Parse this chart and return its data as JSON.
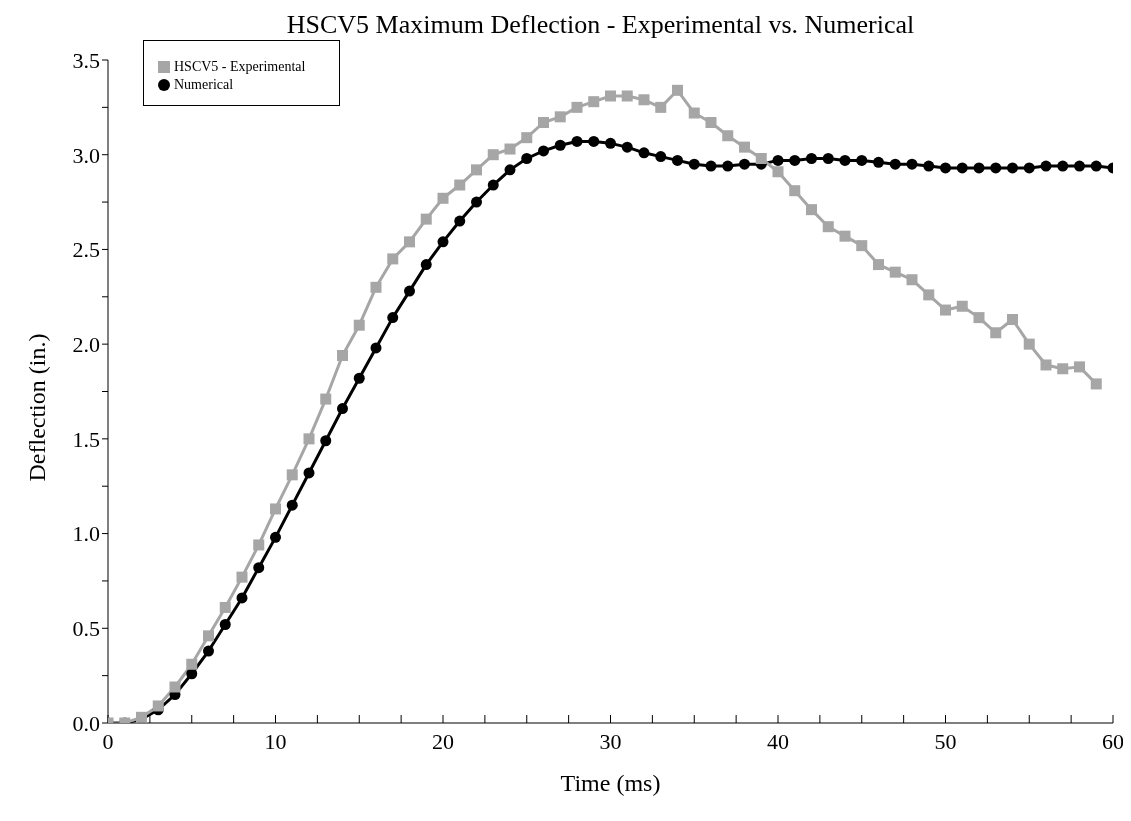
{
  "chart_data": {
    "type": "line",
    "title": "HSCV5 Maximum Deflection - Experimental vs. Numerical",
    "xlabel": "Time (ms)",
    "ylabel": "Deflection (in.)",
    "x": [
      0,
      1,
      2,
      3,
      4,
      5,
      6,
      7,
      8,
      9,
      10,
      11,
      12,
      13,
      14,
      15,
      16,
      17,
      18,
      19,
      20,
      21,
      22,
      23,
      24,
      25,
      26,
      27,
      28,
      29,
      30,
      31,
      32,
      33,
      34,
      35,
      36,
      37,
      38,
      39,
      40,
      41,
      42,
      43,
      44,
      45,
      46,
      47,
      48,
      49,
      50,
      51,
      52,
      53,
      54,
      55,
      56,
      57,
      58,
      59,
      60
    ],
    "series": [
      {
        "name": "Numerical",
        "color": "#000000",
        "marker": "circle",
        "values": [
          0,
          0,
          0.02,
          0.07,
          0.15,
          0.26,
          0.38,
          0.52,
          0.66,
          0.82,
          0.98,
          1.15,
          1.32,
          1.49,
          1.66,
          1.82,
          1.98,
          2.14,
          2.28,
          2.42,
          2.54,
          2.65,
          2.75,
          2.84,
          2.92,
          2.98,
          3.02,
          3.05,
          3.07,
          3.07,
          3.06,
          3.04,
          3.01,
          2.99,
          2.97,
          2.95,
          2.94,
          2.94,
          2.95,
          2.95,
          2.97,
          2.97,
          2.98,
          2.98,
          2.97,
          2.97,
          2.96,
          2.95,
          2.95,
          2.94,
          2.93,
          2.93,
          2.93,
          2.93,
          2.93,
          2.93,
          2.94,
          2.94,
          2.94,
          2.94,
          2.93
        ]
      },
      {
        "name": "HSCV5 - Experimental",
        "color": "#a6a6a6",
        "marker": "square",
        "values": [
          0,
          0,
          0.03,
          0.09,
          0.19,
          0.31,
          0.46,
          0.61,
          0.77,
          0.94,
          1.13,
          1.31,
          1.5,
          1.71,
          1.94,
          2.1,
          2.3,
          2.45,
          2.54,
          2.66,
          2.77,
          2.84,
          2.92,
          3.0,
          3.03,
          3.09,
          3.17,
          3.2,
          3.25,
          3.28,
          3.31,
          3.31,
          3.29,
          3.25,
          3.34,
          3.22,
          3.17,
          3.1,
          3.04,
          2.98,
          2.91,
          2.81,
          2.71,
          2.62,
          2.57,
          2.52,
          2.42,
          2.38,
          2.34,
          2.26,
          2.18,
          2.2,
          2.14,
          2.06,
          2.13,
          2.0,
          1.89,
          1.87,
          1.88,
          1.79,
          null
        ]
      }
    ],
    "xlim": [
      0,
      60
    ],
    "xticks": [
      0,
      {
        "value": 2.5,
        "label": null
      },
      {
        "value": 5,
        "label": null
      },
      {
        "value": 7.5,
        "label": null
      },
      10,
      {
        "value": 12.5,
        "label": null
      },
      {
        "value": 15,
        "label": null
      },
      {
        "value": 17.5,
        "label": null
      },
      20,
      {
        "value": 22.5,
        "label": null
      },
      {
        "value": 25,
        "label": null
      },
      {
        "value": 27.5,
        "label": null
      },
      30,
      {
        "value": 32.5,
        "label": null
      },
      {
        "value": 35,
        "label": null
      },
      {
        "value": 37.5,
        "label": null
      },
      40,
      {
        "value": 42.5,
        "label": null
      },
      {
        "value": 45,
        "label": null
      },
      {
        "value": 47.5,
        "label": null
      },
      50,
      {
        "value": 52.5,
        "label": null
      },
      {
        "value": 55,
        "label": null
      },
      {
        "value": 57.5,
        "label": null
      },
      60
    ],
    "ylim": [
      0,
      3.5
    ],
    "yticks": [
      {
        "value": 0,
        "label": "0.0"
      },
      {
        "value": 0.25,
        "label": null
      },
      {
        "value": 0.5,
        "label": "0.5"
      },
      {
        "value": 0.75,
        "label": null
      },
      {
        "value": 1,
        "label": "1.0"
      },
      {
        "value": 1.25,
        "label": null
      },
      {
        "value": 1.5,
        "label": "1.5"
      },
      {
        "value": 1.75,
        "label": null
      },
      {
        "value": 2,
        "label": "2.0"
      },
      {
        "value": 2.25,
        "label": null
      },
      {
        "value": 2.5,
        "label": "2.5"
      },
      {
        "value": 2.75,
        "label": null
      },
      {
        "value": 3,
        "label": "3.0"
      },
      {
        "value": 3.25,
        "label": null
      },
      {
        "value": 3.5,
        "label": "3.5"
      }
    ],
    "grid": false,
    "legend": "top left",
    "line_style": "solid"
  }
}
